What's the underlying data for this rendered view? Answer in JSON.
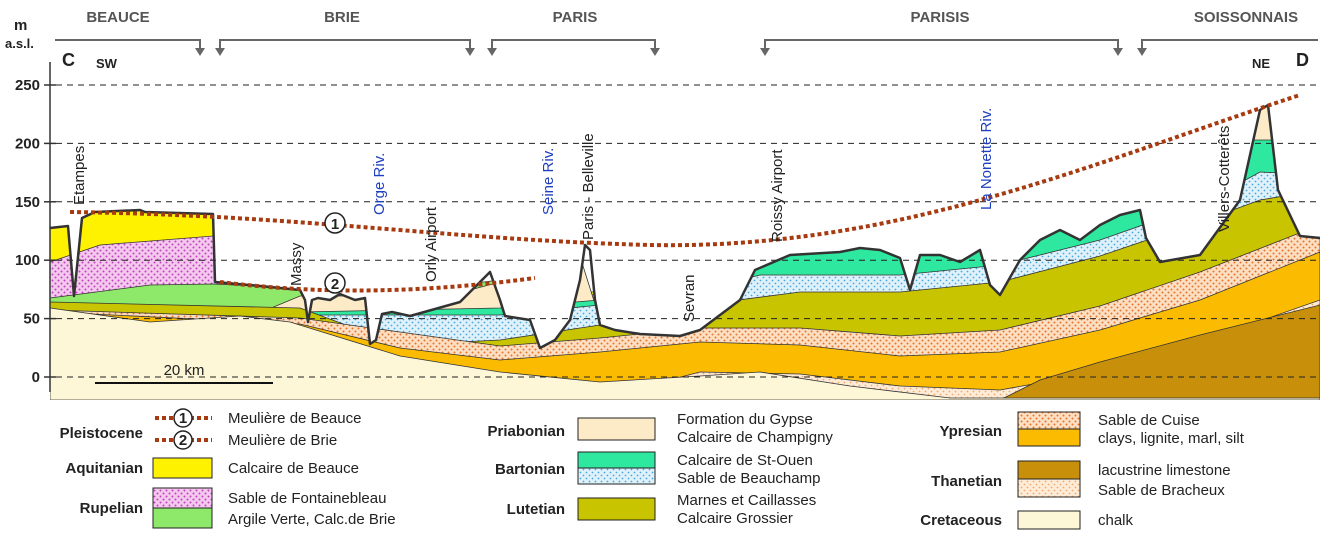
{
  "regions": [
    "BEAUCE",
    "BRIE",
    "PARIS",
    "PARISIS",
    "SOISSONNAIS"
  ],
  "axis": {
    "unit": "m",
    "unit_note": "a.s.l.",
    "ticks": [
      0,
      50,
      100,
      150,
      200,
      250
    ]
  },
  "section": {
    "start": "C",
    "end": "D",
    "start_dir": "SW",
    "end_dir": "NE"
  },
  "places": [
    "Etampes",
    "Massy",
    "Orge Riv.",
    "Orly Airport",
    "Seine Riv.",
    "Paris - Belleville",
    "Sevran",
    "Roissy Airport",
    "La Nonette Riv.",
    "Villers-Cotterêts"
  ],
  "markers": [
    "1",
    "2"
  ],
  "scale": "20 km",
  "legend": [
    {
      "period": "Pleistocene",
      "items": [
        {
          "marker": "1",
          "label": "Meulière de Beauce"
        },
        {
          "marker": "2",
          "label": "Meulière de Brie"
        }
      ]
    },
    {
      "period": "Aquitanian",
      "items": [
        {
          "label": "Calcaire de Beauce"
        }
      ]
    },
    {
      "period": "Rupelian",
      "items": [
        {
          "label": "Sable de Fontainebleau"
        },
        {
          "label": "Argile Verte, Calc.de Brie"
        }
      ]
    },
    {
      "period": "Priabonian",
      "items": [
        {
          "label": "Formation du Gypse"
        },
        {
          "label": "Calcaire de Champigny"
        }
      ]
    },
    {
      "period": "Bartonian",
      "items": [
        {
          "label": "Calcaire de St-Ouen"
        },
        {
          "label": "Sable de Beauchamp"
        }
      ]
    },
    {
      "period": "Lutetian",
      "items": [
        {
          "label": "Marnes et Caillasses"
        },
        {
          "label": "Calcaire Grossier"
        }
      ]
    },
    {
      "period": "Ypresian",
      "items": [
        {
          "label": "Sable de Cuise"
        },
        {
          "label": "clays, lignite, marl, silt"
        }
      ]
    },
    {
      "period": "Thanetian",
      "items": [
        {
          "label": "lacustrine limestone"
        },
        {
          "label": "Sable de Bracheux"
        }
      ]
    },
    {
      "period": "Cretaceous",
      "items": [
        {
          "label": "chalk"
        }
      ]
    }
  ]
}
